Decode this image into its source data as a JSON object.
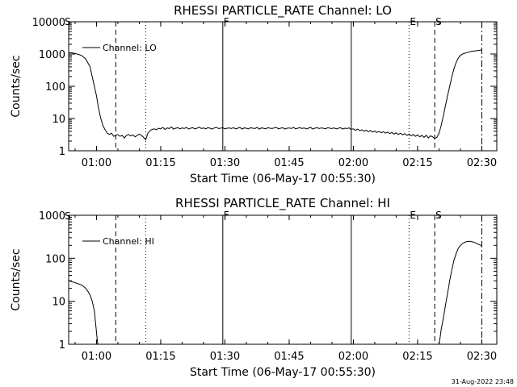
{
  "chart_data": [
    {
      "type": "line",
      "title": "RHESSI PARTICLE_RATE Channel: LO",
      "xlabel": "Start Time (06-May-17 00:55:30)",
      "ylabel": "Counts/sec",
      "yscale": "log",
      "ylim": [
        1,
        10000
      ],
      "xlim_minutes": [
        -2,
        98
      ],
      "x_ticks": [
        {
          "minute": 4.5,
          "label": "01:00"
        },
        {
          "minute": 19.5,
          "label": "01:15"
        },
        {
          "minute": 34.5,
          "label": "01:30"
        },
        {
          "minute": 49.5,
          "label": "01:45"
        },
        {
          "minute": 64.5,
          "label": "02:00"
        },
        {
          "minute": 79.5,
          "label": "02:15"
        },
        {
          "minute": 94.5,
          "label": "02:30"
        }
      ],
      "y_ticks": [
        {
          "value": 1,
          "label": "1"
        },
        {
          "value": 10,
          "label": "10"
        },
        {
          "value": 100,
          "label": "100"
        },
        {
          "value": 1000,
          "label": "1000"
        },
        {
          "value": 10000,
          "label": "10000"
        }
      ],
      "legend": {
        "label": "Channel: LO",
        "position": "top-left"
      },
      "event_lines": [
        {
          "minute": 9.0,
          "style": "dashed",
          "label": ""
        },
        {
          "minute": 16.0,
          "style": "dotted",
          "label": ""
        },
        {
          "minute": 34.0,
          "style": "solid",
          "label": "F"
        },
        {
          "minute": 64.0,
          "style": "solid",
          "label": ""
        },
        {
          "minute": 77.5,
          "style": "dotted",
          "label": "E"
        },
        {
          "minute": 83.5,
          "style": "dashed",
          "label": "S"
        },
        {
          "minute": 94.5,
          "style": "dashdot",
          "label": ""
        }
      ],
      "corner_mark": "S",
      "series": [
        {
          "values": [
            [
              -2,
              1100
            ],
            [
              -1,
              1080
            ],
            [
              0,
              1000
            ],
            [
              1,
              900
            ],
            [
              2,
              700
            ],
            [
              3,
              400
            ],
            [
              4,
              100
            ],
            [
              4.5,
              50
            ],
            [
              5,
              20
            ],
            [
              5.5,
              10
            ],
            [
              6,
              6
            ],
            [
              6.5,
              4.5
            ],
            [
              7,
              3.5
            ],
            [
              7.5,
              3.2
            ],
            [
              8,
              3.5
            ],
            [
              8.5,
              2.8
            ],
            [
              9,
              3
            ],
            [
              9.5,
              3.2
            ],
            [
              10,
              2.8
            ],
            [
              10.5,
              3
            ],
            [
              11,
              2.5
            ],
            [
              11.5,
              3
            ],
            [
              12,
              3.2
            ],
            [
              12.5,
              2.9
            ],
            [
              13,
              3.1
            ],
            [
              13.5,
              2.7
            ],
            [
              14,
              3
            ],
            [
              14.5,
              3.3
            ],
            [
              15,
              3
            ],
            [
              15.5,
              2.6
            ],
            [
              16,
              2.2
            ],
            [
              16.5,
              3.5
            ],
            [
              17,
              4.2
            ],
            [
              17.5,
              4.6
            ],
            [
              18,
              4.8
            ],
            [
              18.5,
              4.5
            ],
            [
              19,
              5
            ],
            [
              19.5,
              4.8
            ],
            [
              20,
              5.3
            ],
            [
              20.5,
              4.6
            ],
            [
              21,
              5.1
            ],
            [
              21.5,
              4.9
            ],
            [
              22,
              5.5
            ],
            [
              22.5,
              4.7
            ],
            [
              23,
              5
            ],
            [
              23.5,
              5.2
            ],
            [
              24,
              4.8
            ],
            [
              24.5,
              5.1
            ],
            [
              25,
              4.9
            ],
            [
              25.5,
              5.3
            ],
            [
              26,
              4.7
            ],
            [
              26.5,
              5
            ],
            [
              27,
              5.2
            ],
            [
              27.5,
              4.8
            ],
            [
              28,
              5
            ],
            [
              28.5,
              5.4
            ],
            [
              29,
              4.9
            ],
            [
              29.5,
              5.1
            ],
            [
              30,
              4.8
            ],
            [
              30.5,
              5.2
            ],
            [
              31,
              5
            ],
            [
              31.5,
              4.7
            ],
            [
              32,
              5.1
            ],
            [
              32.5,
              5.3
            ],
            [
              33,
              4.9
            ],
            [
              33.5,
              5
            ],
            [
              34,
              5.2
            ],
            [
              34.5,
              4.8
            ],
            [
              35,
              5
            ],
            [
              35.5,
              5.1
            ],
            [
              36,
              4.9
            ],
            [
              36.5,
              5.2
            ],
            [
              37,
              4.8
            ],
            [
              37.5,
              5
            ],
            [
              38,
              5.3
            ],
            [
              38.5,
              4.7
            ],
            [
              39,
              5.1
            ],
            [
              39.5,
              5
            ],
            [
              40,
              4.8
            ],
            [
              40.5,
              5.2
            ],
            [
              41,
              5
            ],
            [
              41.5,
              4.9
            ],
            [
              42,
              5.3
            ],
            [
              42.5,
              4.7
            ],
            [
              43,
              5.1
            ],
            [
              43.5,
              5
            ],
            [
              44,
              4.8
            ],
            [
              44.5,
              5.2
            ],
            [
              45,
              5
            ],
            [
              45.5,
              4.9
            ],
            [
              46,
              5.1
            ],
            [
              46.5,
              5.3
            ],
            [
              47,
              4.8
            ],
            [
              47.5,
              5
            ],
            [
              48,
              5.2
            ],
            [
              48.5,
              4.7
            ],
            [
              49,
              5
            ],
            [
              49.5,
              5.1
            ],
            [
              50,
              4.9
            ],
            [
              50.5,
              5.3
            ],
            [
              51,
              4.8
            ],
            [
              51.5,
              5
            ],
            [
              52,
              5.2
            ],
            [
              52.5,
              4.9
            ],
            [
              53,
              5.1
            ],
            [
              53.5,
              4.8
            ],
            [
              54,
              5
            ],
            [
              54.5,
              5.3
            ],
            [
              55,
              4.7
            ],
            [
              55.5,
              5
            ],
            [
              56,
              5.2
            ],
            [
              56.5,
              4.9
            ],
            [
              57,
              5.1
            ],
            [
              57.5,
              5
            ],
            [
              58,
              4.8
            ],
            [
              58.5,
              5.2
            ],
            [
              59,
              5
            ],
            [
              59.5,
              4.9
            ],
            [
              60,
              5.1
            ],
            [
              60.5,
              4.8
            ],
            [
              61,
              5
            ],
            [
              61.5,
              5.2
            ],
            [
              62,
              4.7
            ],
            [
              62.5,
              5
            ],
            [
              63,
              4.9
            ],
            [
              63.5,
              5.1
            ],
            [
              64,
              4.6
            ],
            [
              64.5,
              4.8
            ],
            [
              65,
              4.3
            ],
            [
              65.5,
              4.7
            ],
            [
              66,
              4.2
            ],
            [
              66.5,
              4.5
            ],
            [
              67,
              4
            ],
            [
              67.5,
              4.4
            ],
            [
              68,
              3.9
            ],
            [
              68.5,
              4.3
            ],
            [
              69,
              3.8
            ],
            [
              69.5,
              4.1
            ],
            [
              70,
              3.7
            ],
            [
              70.5,
              4
            ],
            [
              71,
              3.6
            ],
            [
              71.5,
              3.9
            ],
            [
              72,
              3.5
            ],
            [
              72.5,
              3.8
            ],
            [
              73,
              3.4
            ],
            [
              73.5,
              3.7
            ],
            [
              74,
              3.3
            ],
            [
              74.5,
              3.6
            ],
            [
              75,
              3.2
            ],
            [
              75.5,
              3.5
            ],
            [
              76,
              3.1
            ],
            [
              76.5,
              3.4
            ],
            [
              77,
              3
            ],
            [
              77.5,
              3.3
            ],
            [
              78,
              2.9
            ],
            [
              78.5,
              3.2
            ],
            [
              79,
              2.8
            ],
            [
              79.5,
              3.1
            ],
            [
              80,
              2.7
            ],
            [
              80.5,
              3
            ],
            [
              81,
              2.6
            ],
            [
              81.5,
              3
            ],
            [
              82,
              2.5
            ],
            [
              82.5,
              2.9
            ],
            [
              83,
              2.7
            ],
            [
              83.5,
              2.4
            ],
            [
              84,
              2.6
            ],
            [
              84.5,
              3.5
            ],
            [
              85,
              6
            ],
            [
              85.5,
              12
            ],
            [
              86,
              25
            ],
            [
              86.5,
              50
            ],
            [
              87,
              100
            ],
            [
              87.5,
              200
            ],
            [
              88,
              350
            ],
            [
              88.5,
              550
            ],
            [
              89,
              750
            ],
            [
              89.5,
              900
            ],
            [
              90,
              1000
            ],
            [
              91,
              1100
            ],
            [
              92,
              1200
            ],
            [
              93,
              1250
            ],
            [
              94,
              1300
            ],
            [
              94.5,
              1350
            ]
          ]
        }
      ]
    },
    {
      "type": "line",
      "title": "RHESSI PARTICLE_RATE Channel: HI",
      "xlabel": "Start Time (06-May-17 00:55:30)",
      "ylabel": "Counts/sec",
      "yscale": "log",
      "ylim": [
        1,
        1000
      ],
      "xlim_minutes": [
        -2,
        98
      ],
      "x_ticks": [
        {
          "minute": 4.5,
          "label": "01:00"
        },
        {
          "minute": 19.5,
          "label": "01:15"
        },
        {
          "minute": 34.5,
          "label": "01:30"
        },
        {
          "minute": 49.5,
          "label": "01:45"
        },
        {
          "minute": 64.5,
          "label": "02:00"
        },
        {
          "minute": 79.5,
          "label": "02:15"
        },
        {
          "minute": 94.5,
          "label": "02:30"
        }
      ],
      "y_ticks": [
        {
          "value": 1,
          "label": "1"
        },
        {
          "value": 10,
          "label": "10"
        },
        {
          "value": 100,
          "label": "100"
        },
        {
          "value": 1000,
          "label": "1000"
        }
      ],
      "legend": {
        "label": "Channel: HI",
        "position": "top-left"
      },
      "event_lines": [
        {
          "minute": 9.0,
          "style": "dashed",
          "label": ""
        },
        {
          "minute": 16.0,
          "style": "dotted",
          "label": ""
        },
        {
          "minute": 34.0,
          "style": "solid",
          "label": "F"
        },
        {
          "minute": 64.0,
          "style": "solid",
          "label": ""
        },
        {
          "minute": 77.5,
          "style": "dotted",
          "label": "E"
        },
        {
          "minute": 83.5,
          "style": "dashed",
          "label": "S"
        },
        {
          "minute": 94.5,
          "style": "dashdot",
          "label": ""
        }
      ],
      "corner_mark": "S",
      "series": [
        {
          "segments": [
            [
              [
                -2,
                30
              ],
              [
                -1,
                28
              ],
              [
                0,
                26
              ],
              [
                1,
                24
              ],
              [
                1.5,
                22
              ],
              [
                2,
                20
              ],
              [
                2.5,
                17
              ],
              [
                3,
                14
              ],
              [
                3.5,
                10
              ],
              [
                4,
                6
              ],
              [
                4.3,
                3
              ],
              [
                4.6,
                1.5
              ],
              [
                4.8,
                1
              ]
            ],
            [
              [
                84.5,
                1
              ],
              [
                84.8,
                1.5
              ],
              [
                85,
                2.2
              ],
              [
                85.5,
                4
              ],
              [
                86,
                8
              ],
              [
                86.5,
                15
              ],
              [
                87,
                30
              ],
              [
                87.5,
                55
              ],
              [
                88,
                90
              ],
              [
                88.5,
                130
              ],
              [
                89,
                170
              ],
              [
                89.5,
                200
              ],
              [
                90,
                220
              ],
              [
                90.5,
                235
              ],
              [
                91,
                245
              ],
              [
                91.5,
                248
              ],
              [
                92,
                245
              ],
              [
                92.5,
                240
              ],
              [
                93,
                228
              ],
              [
                93.5,
                215
              ],
              [
                94,
                205
              ],
              [
                94.5,
                195
              ]
            ]
          ]
        }
      ]
    }
  ],
  "timestamp": "31-Aug-2022 23:48"
}
